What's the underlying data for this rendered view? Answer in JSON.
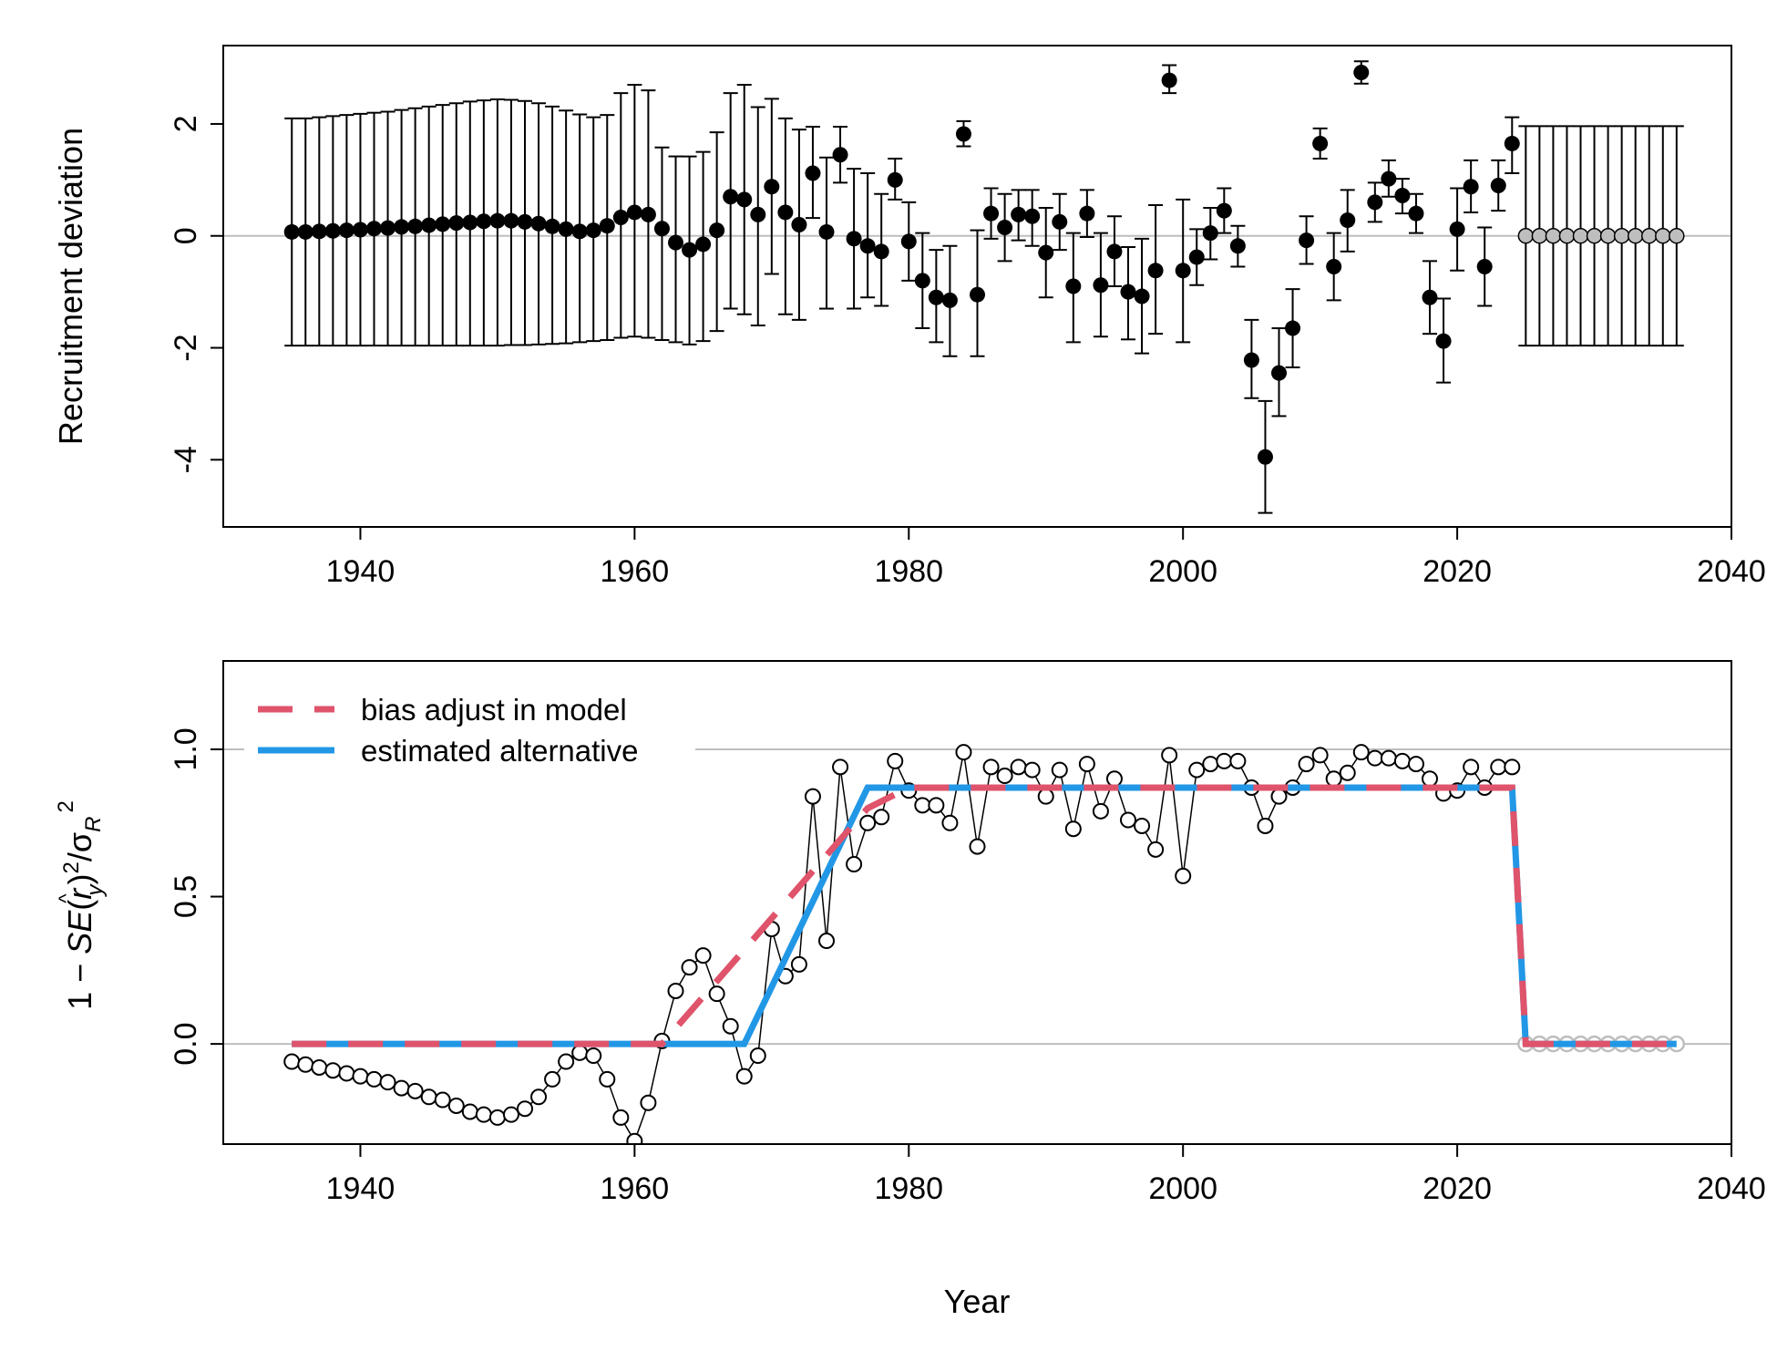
{
  "chart_data": [
    {
      "type": "scatter",
      "panel": "top",
      "ylabel": "Recruitment deviation",
      "xlim": [
        1930,
        2040
      ],
      "ylim": [
        -5.2,
        3.4
      ],
      "x_ticks": [
        1940,
        1960,
        1980,
        2000,
        2020,
        2040
      ],
      "y_ticks": [
        -4,
        -2,
        0,
        2
      ],
      "x_tick_labels": [
        "1940",
        "1960",
        "1980",
        "2000",
        "2020",
        "2040"
      ],
      "y_tick_labels": [
        "-4",
        "-2",
        "0",
        "2"
      ],
      "reference_line": 0,
      "colors": {
        "estimated": "#000000",
        "forecast": "#bebebe",
        "reference": "#bebebe"
      },
      "series": [
        {
          "kind": "estimated",
          "x": [
            1935,
            1936,
            1937,
            1938,
            1939,
            1940,
            1941,
            1942,
            1943,
            1944,
            1945,
            1946,
            1947,
            1948,
            1949,
            1950,
            1951,
            1952,
            1953,
            1954,
            1955,
            1956,
            1957,
            1958,
            1959,
            1960,
            1961,
            1962,
            1963,
            1964,
            1965,
            1966,
            1967,
            1968,
            1969,
            1970,
            1971,
            1972,
            1973,
            1974,
            1975,
            1976,
            1977,
            1978,
            1979,
            1980,
            1981,
            1982,
            1983,
            1984,
            1985,
            1986,
            1987,
            1988,
            1989,
            1990,
            1991,
            1992,
            1993,
            1994,
            1995,
            1996,
            1997,
            1998,
            1999,
            2000,
            2001,
            2002,
            2003,
            2004,
            2005,
            2006,
            2007,
            2008,
            2009,
            2010,
            2011,
            2012,
            2013,
            2014,
            2015,
            2016,
            2017,
            2018,
            2019,
            2020,
            2021,
            2022,
            2023,
            2024
          ],
          "y": [
            0.07,
            0.07,
            0.08,
            0.09,
            0.1,
            0.11,
            0.13,
            0.14,
            0.16,
            0.17,
            0.19,
            0.21,
            0.23,
            0.24,
            0.26,
            0.27,
            0.27,
            0.25,
            0.22,
            0.17,
            0.12,
            0.08,
            0.1,
            0.18,
            0.33,
            0.42,
            0.38,
            0.13,
            -0.12,
            -0.25,
            -0.15,
            0.1,
            0.7,
            0.65,
            0.38,
            0.88,
            0.42,
            0.2,
            1.12,
            0.07,
            1.45,
            -0.05,
            -0.18,
            -0.28,
            1.0,
            -0.1,
            -0.8,
            -1.1,
            -1.15,
            1.82,
            -1.05,
            0.4,
            0.15,
            0.38,
            0.35,
            -0.3,
            0.25,
            -0.9,
            0.4,
            -0.88,
            -0.28,
            -1.0,
            -1.08,
            -0.62,
            2.78,
            -0.62,
            -0.38,
            0.05,
            0.45,
            -0.18,
            -2.22,
            -3.95,
            -2.45,
            -1.65,
            -0.08,
            1.65,
            -0.55,
            0.28,
            2.92,
            0.6,
            1.02,
            0.72,
            0.4,
            -1.1,
            -1.88,
            0.12,
            0.88,
            -0.55,
            0.9,
            1.65
          ],
          "lower": [
            -1.96,
            -1.96,
            -1.96,
            -1.96,
            -1.96,
            -1.96,
            -1.96,
            -1.96,
            -1.96,
            -1.96,
            -1.96,
            -1.96,
            -1.96,
            -1.96,
            -1.96,
            -1.96,
            -1.95,
            -1.95,
            -1.94,
            -1.93,
            -1.92,
            -1.9,
            -1.88,
            -1.86,
            -1.82,
            -1.8,
            -1.82,
            -1.86,
            -1.9,
            -1.94,
            -1.88,
            -1.7,
            -1.3,
            -1.4,
            -1.6,
            -0.68,
            -1.4,
            -1.5,
            0.32,
            -1.3,
            0.95,
            -1.3,
            -1.1,
            -1.25,
            0.65,
            -0.8,
            -1.65,
            -1.9,
            -2.15,
            1.6,
            -2.15,
            -0.05,
            -0.45,
            -0.08,
            -0.18,
            -1.1,
            -0.25,
            -1.9,
            -0.02,
            -1.8,
            -0.9,
            -1.85,
            -2.1,
            -1.75,
            2.55,
            -1.9,
            -0.88,
            -0.42,
            0.05,
            -0.55,
            -2.9,
            -4.95,
            -3.22,
            -2.35,
            -0.5,
            1.38,
            -1.15,
            -0.28,
            2.72,
            0.25,
            0.7,
            0.4,
            0.05,
            -1.75,
            -2.62,
            -0.62,
            0.42,
            -1.25,
            0.45,
            1.12
          ],
          "upper": [
            2.1,
            2.1,
            2.12,
            2.14,
            2.16,
            2.18,
            2.2,
            2.22,
            2.25,
            2.28,
            2.31,
            2.34,
            2.37,
            2.4,
            2.42,
            2.44,
            2.43,
            2.41,
            2.37,
            2.31,
            2.24,
            2.17,
            2.12,
            2.16,
            2.55,
            2.7,
            2.6,
            1.58,
            1.42,
            1.42,
            1.5,
            1.85,
            2.55,
            2.7,
            2.3,
            2.45,
            2.1,
            1.9,
            1.95,
            1.4,
            1.95,
            1.2,
            1.12,
            0.75,
            1.38,
            0.6,
            0.05,
            -0.25,
            -0.18,
            2.05,
            0.1,
            0.85,
            0.75,
            0.82,
            0.82,
            0.5,
            0.75,
            0.05,
            0.82,
            0.05,
            0.35,
            -0.2,
            -0.05,
            0.55,
            3.05,
            0.65,
            0.12,
            0.5,
            0.85,
            0.18,
            -1.5,
            -2.95,
            -1.65,
            -0.95,
            0.35,
            1.92,
            0.05,
            0.82,
            3.12,
            0.95,
            1.35,
            1.02,
            0.75,
            -0.45,
            -1.12,
            0.85,
            1.35,
            0.15,
            1.35,
            2.12
          ]
        },
        {
          "kind": "forecast",
          "x": [
            2025,
            2026,
            2027,
            2028,
            2029,
            2030,
            2031,
            2032,
            2033,
            2034,
            2035,
            2036
          ],
          "y": [
            0,
            0,
            0,
            0,
            0,
            0,
            0,
            0,
            0,
            0,
            0,
            0
          ],
          "lower": [
            -1.96,
            -1.96,
            -1.96,
            -1.96,
            -1.96,
            -1.96,
            -1.96,
            -1.96,
            -1.96,
            -1.96,
            -1.96,
            -1.96
          ],
          "upper": [
            1.96,
            1.96,
            1.96,
            1.96,
            1.96,
            1.96,
            1.96,
            1.96,
            1.96,
            1.96,
            1.96,
            1.96
          ]
        }
      ]
    },
    {
      "type": "line",
      "panel": "bottom",
      "xlabel": "Year",
      "ylabel_parts": {
        "prefix": "1 − ",
        "se": "SE",
        "open": "(",
        "rhat": "r",
        "hat": "^",
        "sub": "y",
        "close": ")",
        "sup": "2",
        "slash": "/",
        "sigma": "σ",
        "sigma_sub": "R",
        "sigma_sup": "2"
      },
      "xlim": [
        1930,
        2040
      ],
      "ylim": [
        -0.34,
        1.3
      ],
      "x_ticks": [
        1940,
        1960,
        1980,
        2000,
        2020,
        2040
      ],
      "y_ticks": [
        0.0,
        0.5,
        1.0
      ],
      "x_tick_labels": [
        "1940",
        "1960",
        "1980",
        "2000",
        "2020",
        "2040"
      ],
      "y_tick_labels": [
        "0.0",
        "0.5",
        "1.0"
      ],
      "reference_lines": [
        0,
        1
      ],
      "legend": {
        "position": "top-left",
        "entries": [
          {
            "label": "bias adjust in model",
            "color": "#DF536B",
            "style": "dashed"
          },
          {
            "label": "estimated alternative",
            "color": "#2297E6",
            "style": "solid"
          }
        ]
      },
      "points": {
        "x": [
          1935,
          1936,
          1937,
          1938,
          1939,
          1940,
          1941,
          1942,
          1943,
          1944,
          1945,
          1946,
          1947,
          1948,
          1949,
          1950,
          1951,
          1952,
          1953,
          1954,
          1955,
          1956,
          1957,
          1958,
          1959,
          1960,
          1961,
          1962,
          1963,
          1964,
          1965,
          1966,
          1967,
          1968,
          1969,
          1970,
          1971,
          1972,
          1973,
          1974,
          1975,
          1976,
          1977,
          1978,
          1979,
          1980,
          1981,
          1982,
          1983,
          1984,
          1985,
          1986,
          1987,
          1988,
          1989,
          1990,
          1991,
          1992,
          1993,
          1994,
          1995,
          1996,
          1997,
          1998,
          1999,
          2000,
          2001,
          2002,
          2003,
          2004,
          2005,
          2006,
          2007,
          2008,
          2009,
          2010,
          2011,
          2012,
          2013,
          2014,
          2015,
          2016,
          2017,
          2018,
          2019,
          2020,
          2021,
          2022,
          2023,
          2024
        ],
        "y": [
          -0.06,
          -0.07,
          -0.08,
          -0.09,
          -0.1,
          -0.11,
          -0.12,
          -0.13,
          -0.15,
          -0.16,
          -0.18,
          -0.19,
          -0.21,
          -0.23,
          -0.24,
          -0.25,
          -0.24,
          -0.22,
          -0.18,
          -0.12,
          -0.06,
          -0.03,
          -0.04,
          -0.12,
          -0.25,
          -0.33,
          -0.2,
          0.01,
          0.18,
          0.26,
          0.3,
          0.17,
          0.06,
          -0.11,
          -0.04,
          0.39,
          0.23,
          0.27,
          0.84,
          0.35,
          0.94,
          0.61,
          0.75,
          0.77,
          0.96,
          0.86,
          0.81,
          0.81,
          0.75,
          0.99,
          0.67,
          0.94,
          0.91,
          0.94,
          0.93,
          0.84,
          0.93,
          0.73,
          0.95,
          0.79,
          0.9,
          0.76,
          0.74,
          0.66,
          0.98,
          0.57,
          0.93,
          0.95,
          0.96,
          0.96,
          0.87,
          0.74,
          0.84,
          0.87,
          0.95,
          0.98,
          0.9,
          0.92,
          0.99,
          0.97,
          0.97,
          0.96,
          0.95,
          0.9,
          0.85,
          0.86,
          0.94,
          0.87,
          0.94,
          0.94
        ]
      },
      "forecast_points": {
        "x": [
          2025,
          2026,
          2027,
          2028,
          2029,
          2030,
          2031,
          2032,
          2033,
          2034,
          2035,
          2036
        ],
        "y": [
          0,
          0,
          0,
          0,
          0,
          0,
          0,
          0,
          0,
          0,
          0,
          0
        ]
      },
      "bias_adjust_in_model": {
        "x": [
          1935,
          1962,
          1977,
          1980,
          2024,
          2025,
          2036
        ],
        "y": [
          0,
          0,
          0.8,
          0.87,
          0.87,
          0,
          0
        ]
      },
      "estimated_alternative": {
        "x": [
          1935,
          1968,
          1977,
          2024,
          2025,
          2036
        ],
        "y": [
          0,
          0,
          0.87,
          0.87,
          0,
          0
        ]
      }
    }
  ]
}
